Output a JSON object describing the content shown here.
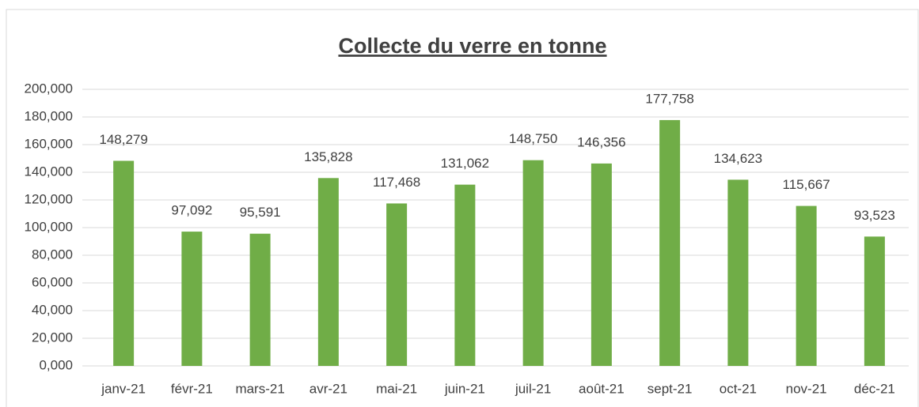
{
  "chart_data": {
    "type": "bar",
    "title": "Collecte du verre en tonne",
    "categories": [
      "janv-21",
      "févr-21",
      "mars-21",
      "avr-21",
      "mai-21",
      "juin-21",
      "juil-21",
      "août-21",
      "sept-21",
      "oct-21",
      "nov-21",
      "déc-21"
    ],
    "values": [
      148.279,
      97.092,
      95.591,
      135.828,
      117.468,
      131.062,
      148.75,
      146.356,
      177.758,
      134.623,
      115.667,
      93.523
    ],
    "value_labels": [
      "148,279",
      "97,092",
      "95,591",
      "135,828",
      "117,468",
      "131,062",
      "148,750",
      "146,356",
      "177,758",
      "134,623",
      "115,667",
      "93,523"
    ],
    "color": "#70ad47",
    "ylim": [
      0,
      200
    ],
    "yticks": [
      {
        "value": 0,
        "label": "0,000"
      },
      {
        "value": 20,
        "label": "20,000"
      },
      {
        "value": 40,
        "label": "40,000"
      },
      {
        "value": 60,
        "label": "60,000"
      },
      {
        "value": 80,
        "label": "80,000"
      },
      {
        "value": 100,
        "label": "100,000"
      },
      {
        "value": 120,
        "label": "120,000"
      },
      {
        "value": 140,
        "label": "140,000"
      },
      {
        "value": 160,
        "label": "160,000"
      },
      {
        "value": 180,
        "label": "180,000"
      },
      {
        "value": 200,
        "label": "200,000"
      }
    ],
    "grid": true
  }
}
